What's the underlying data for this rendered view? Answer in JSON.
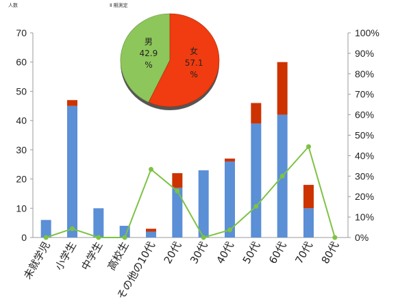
{
  "top_left_label": "人数",
  "top_mid_label": "Ⅱ 期測定",
  "chart_data": [
    {
      "type": "bar",
      "stacked": true,
      "categories": [
        "未就学児",
        "小学生",
        "中学生",
        "高校生",
        "その他の10代",
        "20代",
        "30代",
        "40代",
        "50代",
        "60代",
        "70代",
        "80代"
      ],
      "series": [
        {
          "values": [
            6,
            45,
            10,
            4,
            2,
            17,
            23,
            26,
            39,
            42,
            10,
            0
          ],
          "color": "#5B8FD6"
        },
        {
          "values": [
            0,
            2,
            0,
            0,
            1,
            5,
            0,
            1,
            7,
            18,
            8,
            0
          ],
          "color": "#CC3300"
        }
      ],
      "ylim": [
        0,
        70
      ],
      "yticks": [
        0,
        10,
        20,
        30,
        40,
        50,
        60,
        70
      ]
    },
    {
      "type": "line",
      "categories": [
        "未就学児",
        "小学生",
        "中学生",
        "高校生",
        "その他の10代",
        "20代",
        "30代",
        "40代",
        "50代",
        "60代",
        "70代",
        "80代"
      ],
      "values": [
        0,
        4.3,
        0,
        0,
        33.3,
        22.7,
        0,
        3.7,
        15.2,
        30.0,
        44.4,
        0
      ],
      "unit": "%",
      "color": "#7DC243",
      "ylim": [
        0,
        100
      ],
      "yticks": [
        "0%",
        "10%",
        "20%",
        "30%",
        "40%",
        "50%",
        "60%",
        "70%",
        "80%",
        "90%",
        "100%"
      ]
    },
    {
      "type": "pie",
      "slices": [
        {
          "label": "男",
          "value": 42.9,
          "value_text": "42.9",
          "unit": "%",
          "color": "#8DC65A"
        },
        {
          "label": "女",
          "value": 57.1,
          "value_text": "57.1",
          "unit": "%",
          "color": "#F03C10"
        }
      ]
    }
  ]
}
